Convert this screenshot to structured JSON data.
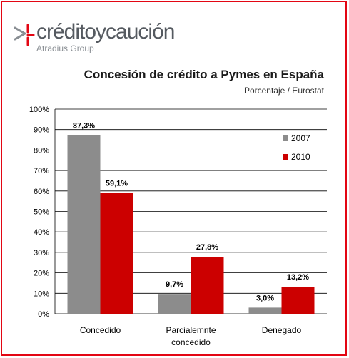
{
  "logo": {
    "name": "créditoycaución",
    "sub": "Atradius Group"
  },
  "colors": {
    "border": "#e30613",
    "s2007": "#8c8c8c",
    "s2010": "#cc0000",
    "logo_red": "#e30613",
    "logo_gray": "#555a60"
  },
  "chart_data": {
    "type": "bar",
    "title": "Concesión de crédito a Pymes en España",
    "subtitle": "Porcentaje / Eurostat",
    "categories": [
      [
        "Concedido"
      ],
      [
        "Parcialemnte",
        "concedido"
      ],
      [
        "Denegado"
      ]
    ],
    "series": [
      {
        "name": "2007",
        "values": [
          87.3,
          9.7,
          3.0
        ],
        "labels": [
          "87,3%",
          "9,7%",
          "3,0%"
        ]
      },
      {
        "name": "2010",
        "values": [
          59.1,
          27.8,
          13.2
        ],
        "labels": [
          "59,1%",
          "27,8%",
          "13,2%"
        ]
      }
    ],
    "ylim": [
      0,
      100
    ],
    "yticks": [
      "0%",
      "10%",
      "20%",
      "30%",
      "40%",
      "50%",
      "60%",
      "70%",
      "80%",
      "90%",
      "100%"
    ],
    "grid": true,
    "legend_position": "right"
  }
}
